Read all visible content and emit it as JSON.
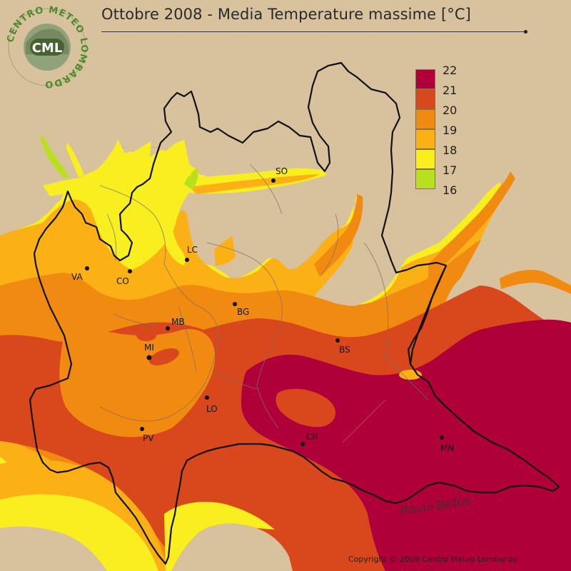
{
  "title": "Ottobre 2008 - Media Temperature massime [°C]",
  "logo": {
    "text": "CML",
    "ring_text": "CENTRO METEO LOMBARDO"
  },
  "legend": {
    "items": [
      {
        "label": "22",
        "color": "#b0003a"
      },
      {
        "label": "21",
        "color": "#d9481c"
      },
      {
        "label": "20",
        "color": "#f08a10"
      },
      {
        "label": "19",
        "color": "#fbb116"
      },
      {
        "label": "18",
        "color": "#f8ee20"
      },
      {
        "label": "17",
        "color": "#b8e01e"
      },
      {
        "label": "16",
        "color": "#ffffff"
      }
    ]
  },
  "cities": [
    {
      "name": "SO"
    },
    {
      "name": "LC"
    },
    {
      "name": "VA"
    },
    {
      "name": "CO"
    },
    {
      "name": "BG"
    },
    {
      "name": "MB"
    },
    {
      "name": "MI"
    },
    {
      "name": "BS"
    },
    {
      "name": "LO"
    },
    {
      "name": "PV"
    },
    {
      "name": "CR"
    },
    {
      "name": "MN"
    }
  ],
  "signature": "Bruno Bellini",
  "copyright": "Copyright © 2009 Centro Meteo Lombardo"
}
